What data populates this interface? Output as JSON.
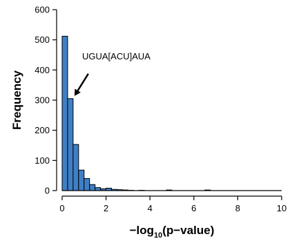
{
  "chart_data": {
    "type": "bar",
    "title": "",
    "xlabel_main": "−log",
    "xlabel_sub": "10",
    "xlabel_rest": "(p−value)",
    "ylabel": "Frequency",
    "xlim": [
      0,
      10
    ],
    "ylim": [
      0,
      600
    ],
    "xticks": [
      0,
      2,
      4,
      6,
      8,
      10
    ],
    "yticks": [
      0,
      100,
      200,
      300,
      400,
      500,
      600
    ],
    "bin_width": 0.25,
    "bins": [
      {
        "x0": 0.0,
        "count": 512
      },
      {
        "x0": 0.25,
        "count": 305
      },
      {
        "x0": 0.5,
        "count": 153
      },
      {
        "x0": 0.75,
        "count": 68
      },
      {
        "x0": 1.0,
        "count": 40
      },
      {
        "x0": 1.25,
        "count": 20
      },
      {
        "x0": 1.5,
        "count": 10
      },
      {
        "x0": 1.75,
        "count": 6
      },
      {
        "x0": 2.0,
        "count": 8
      },
      {
        "x0": 2.25,
        "count": 4
      },
      {
        "x0": 2.5,
        "count": 3
      },
      {
        "x0": 2.75,
        "count": 2
      },
      {
        "x0": 3.0,
        "count": 1
      },
      {
        "x0": 3.5,
        "count": 1
      },
      {
        "x0": 4.75,
        "count": 2
      },
      {
        "x0": 6.5,
        "count": 2
      }
    ],
    "annotation": {
      "text": "UGUA[ACU]AUA",
      "target_bin_x0": 0.25
    },
    "bar_color": "#3f7fc6",
    "bar_edge": "#000000",
    "grid": false,
    "legend": "none"
  }
}
